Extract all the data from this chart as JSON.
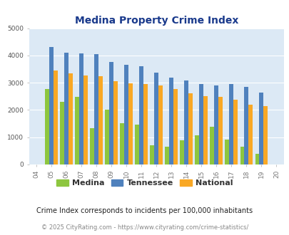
{
  "title": "Medina Property Crime Index",
  "years": [
    "04",
    "05",
    "06",
    "07",
    "08",
    "09",
    "10",
    "11",
    "12",
    "13",
    "14",
    "15",
    "16",
    "17",
    "18",
    "19",
    "20"
  ],
  "full_years": [
    2004,
    2005,
    2006,
    2007,
    2008,
    2009,
    2010,
    2011,
    2012,
    2013,
    2014,
    2015,
    2016,
    2017,
    2018,
    2019,
    2020
  ],
  "medina": [
    0,
    2780,
    2300,
    2490,
    1340,
    2010,
    1520,
    1460,
    710,
    660,
    900,
    1080,
    1390,
    920,
    660,
    380,
    0
  ],
  "tennessee": [
    0,
    4300,
    4100,
    4080,
    4040,
    3760,
    3660,
    3600,
    3370,
    3190,
    3080,
    2960,
    2890,
    2950,
    2850,
    2650,
    0
  ],
  "national": [
    0,
    3450,
    3350,
    3270,
    3230,
    3060,
    2970,
    2950,
    2900,
    2760,
    2620,
    2500,
    2470,
    2380,
    2200,
    2150,
    0
  ],
  "medina_color": "#8dc63f",
  "tennessee_color": "#4f81bd",
  "national_color": "#f9a825",
  "bg_color": "#dce9f5",
  "title_color": "#1a3a8c",
  "legend_medina": "Medina",
  "legend_tennessee": "Tennessee",
  "legend_national": "National",
  "footnote1": "Crime Index corresponds to incidents per 100,000 inhabitants",
  "footnote2": "© 2025 CityRating.com - https://www.cityrating.com/crime-statistics/",
  "ylim": [
    0,
    5000
  ],
  "yticks": [
    0,
    1000,
    2000,
    3000,
    4000,
    5000
  ],
  "bar_width": 0.28,
  "figsize": [
    4.06,
    3.3
  ],
  "dpi": 100
}
